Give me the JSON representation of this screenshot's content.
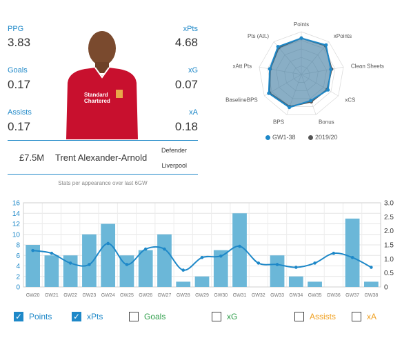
{
  "stats_left": [
    {
      "label": "PPG",
      "value": "3.83"
    },
    {
      "label": "Goals",
      "value": "0.17"
    },
    {
      "label": "Assists",
      "value": "0.17"
    }
  ],
  "stats_right": [
    {
      "label": "xPts",
      "value": "4.68"
    },
    {
      "label": "xG",
      "value": "0.07"
    },
    {
      "label": "xA",
      "value": "0.18"
    }
  ],
  "player": {
    "price": "£7.5M",
    "name": "Trent Alexander-Arnold",
    "position": "Defender",
    "team": "Liverpool",
    "shirt_color": "#c8102e"
  },
  "caption": "Stats per appearance over last 6GW",
  "radar": {
    "axes": [
      "Points",
      "xPoints",
      "Clean Sheets",
      "xCS",
      "Bonus",
      "BPS",
      "BaselineBPS",
      "xAtt Pts",
      "Pts (Att.)"
    ],
    "series": [
      {
        "name": "GW1-38",
        "color": "#1e88c8",
        "values": [
          0.85,
          0.9,
          0.7,
          0.72,
          0.65,
          0.82,
          0.88,
          0.75,
          0.85
        ]
      },
      {
        "name": "2019/20",
        "color": "#555555",
        "values": [
          0.85,
          0.88,
          0.72,
          0.7,
          0.68,
          0.8,
          0.86,
          0.74,
          0.82
        ]
      }
    ]
  },
  "chart_data": {
    "type": "bar",
    "categories": [
      "GW20",
      "GW21",
      "GW22",
      "GW23",
      "GW24",
      "GW25",
      "GW26",
      "GW27",
      "GW28",
      "GW29",
      "GW30",
      "GW31",
      "GW32",
      "GW33",
      "GW34",
      "GW35",
      "GW36",
      "GW37",
      "GW38"
    ],
    "series": [
      {
        "name": "Points",
        "type": "bar",
        "color": "#6bb7d8",
        "values": [
          8,
          6,
          6,
          10,
          12,
          6,
          7,
          10,
          1,
          2,
          7,
          14,
          0,
          6,
          2,
          1,
          0,
          13,
          1
        ]
      },
      {
        "name": "xPts",
        "type": "line",
        "axis": "right",
        "color": "#1e88c8",
        "values": [
          1.3,
          1.2,
          0.85,
          0.8,
          1.55,
          0.8,
          1.35,
          1.35,
          0.6,
          1.05,
          1.1,
          1.45,
          0.85,
          0.8,
          0.7,
          0.85,
          1.2,
          1.05,
          0.7
        ]
      }
    ],
    "ylim_left": [
      0,
      16
    ],
    "yticks_left": [
      "0",
      "2",
      "4",
      "6",
      "8",
      "10",
      "12",
      "14",
      "16"
    ],
    "ylim_right": [
      0,
      3.0
    ],
    "yticks_right": [
      "0",
      "0.5",
      "1.0",
      "1.5",
      "2.0",
      "2.5",
      "3.0"
    ],
    "grid": true
  },
  "toggles": [
    {
      "label": "Points",
      "checked": true,
      "color": "#1e88c8"
    },
    {
      "label": "xPts",
      "checked": true,
      "color": "#1e88c8"
    },
    {
      "label": "Goals",
      "checked": false,
      "color": "#2e9e4a"
    },
    {
      "label": "xG",
      "checked": false,
      "color": "#2e9e4a"
    },
    {
      "label": "Assists",
      "checked": false,
      "color": "#f0a020"
    },
    {
      "label": "xA",
      "checked": false,
      "color": "#f0a020"
    }
  ]
}
